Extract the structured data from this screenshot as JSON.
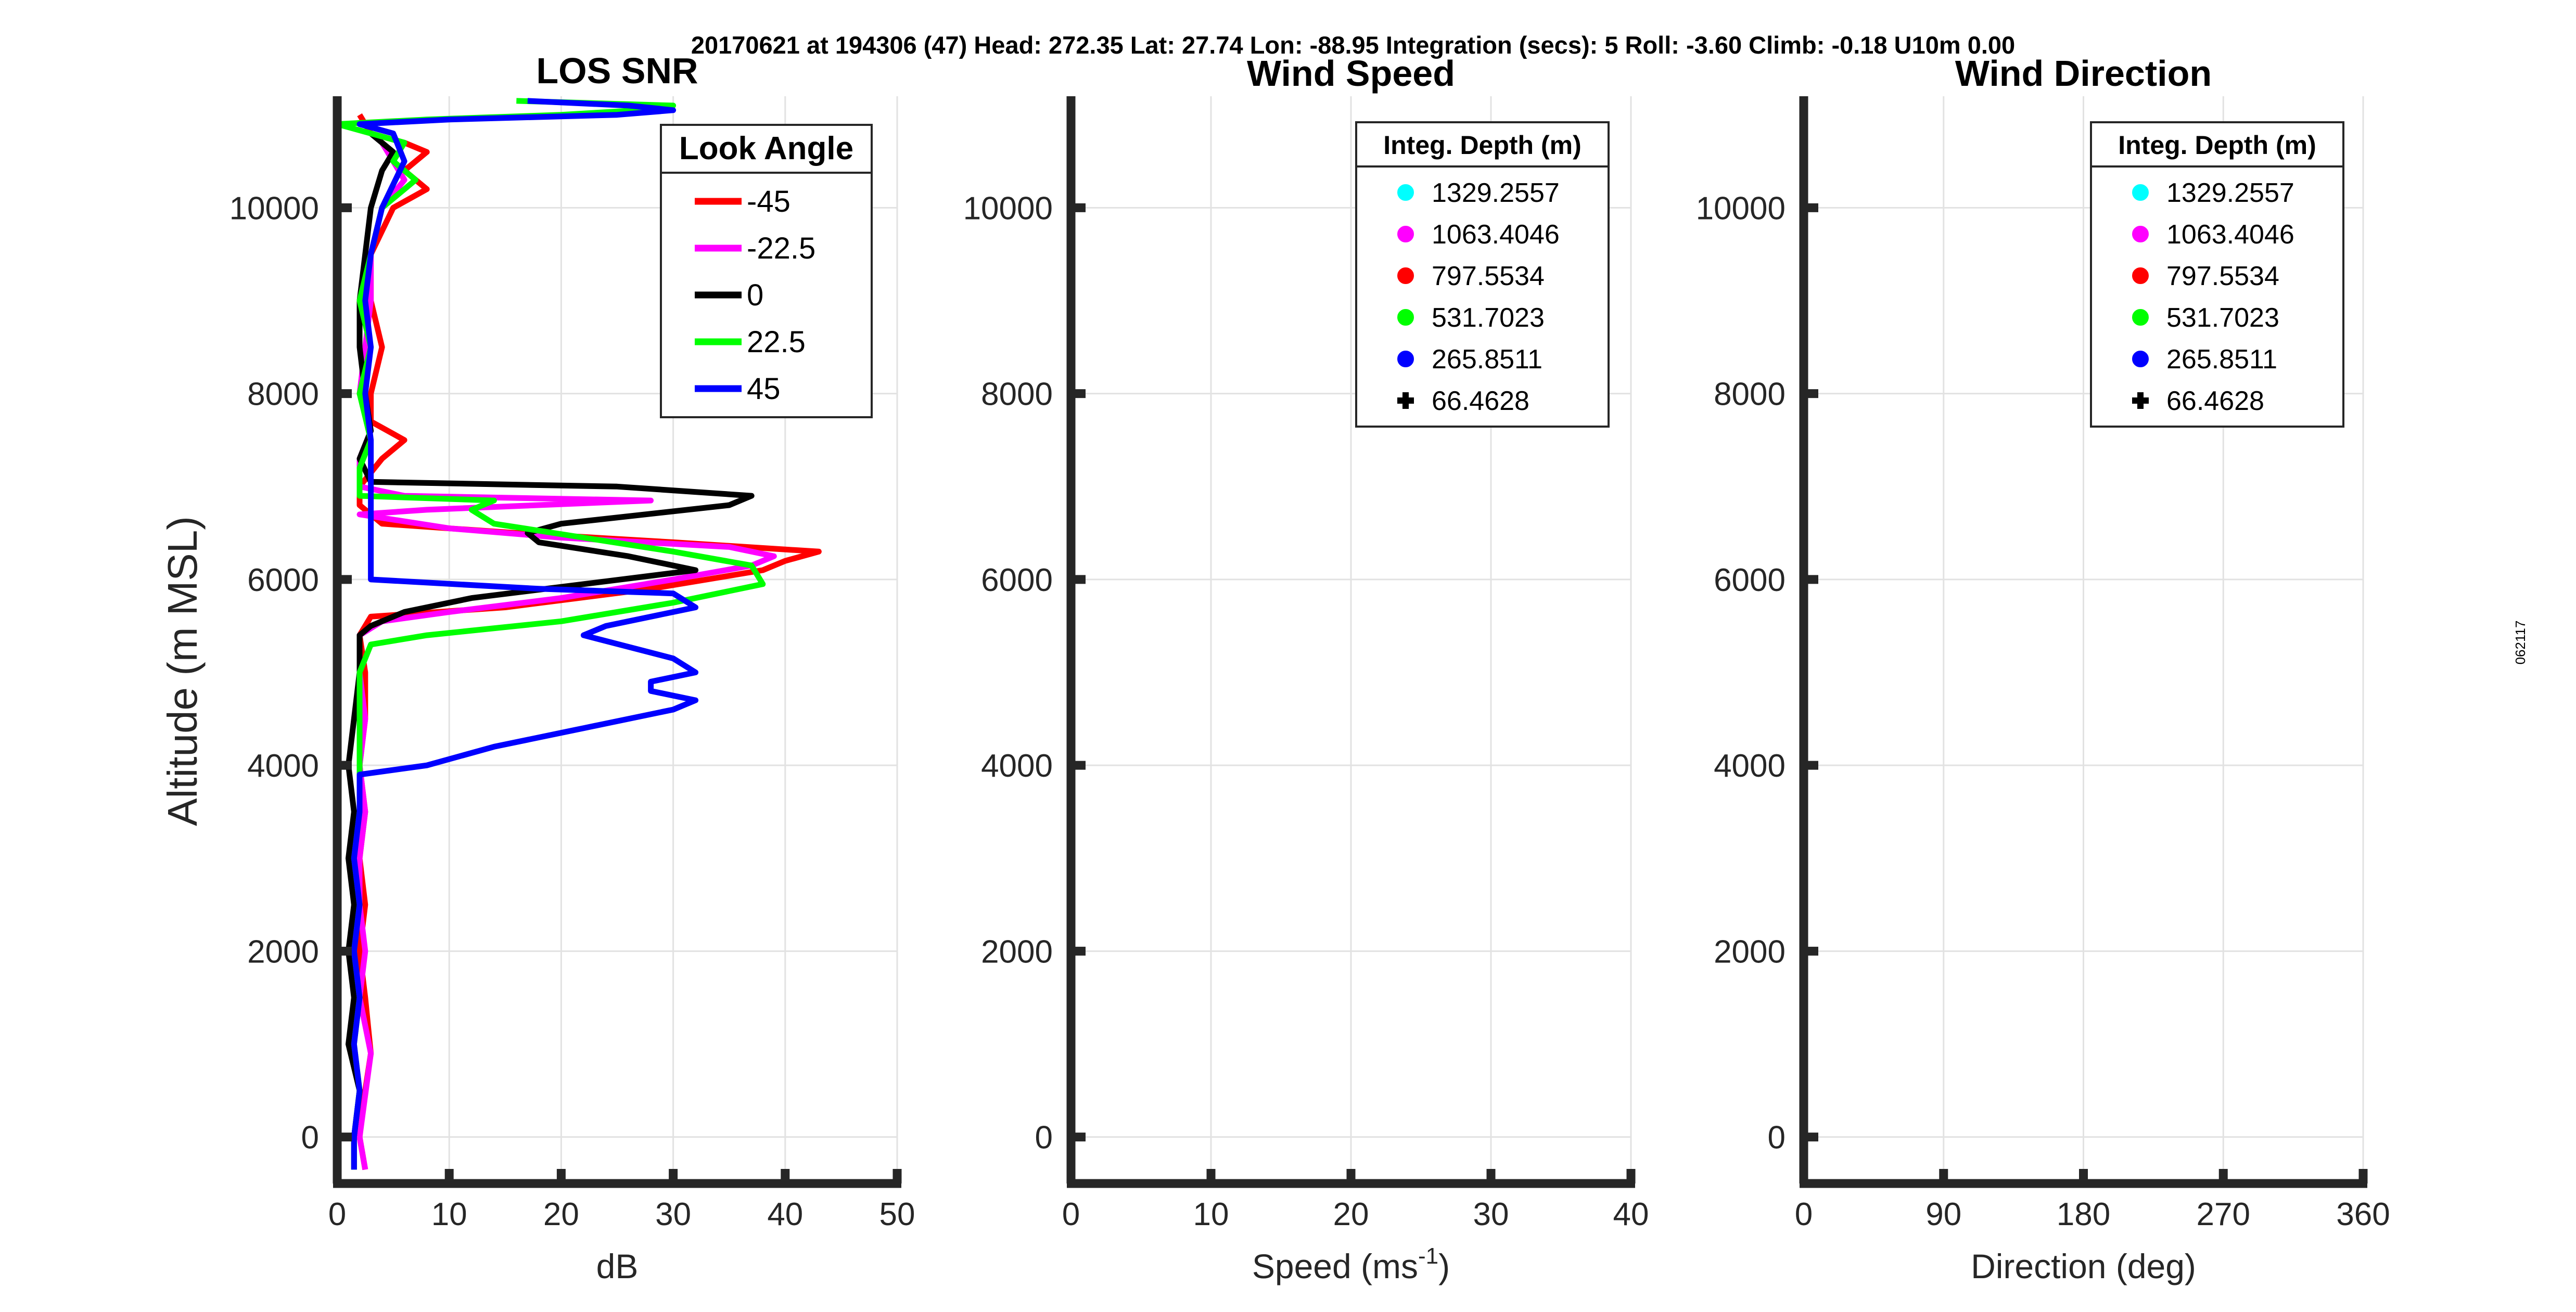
{
  "header": "20170621 at 194306 (47)  Head: 272.35  Lat: 27.74  Lon: -88.95  Integration (secs): 5  Roll: -3.60  Climb: -0.18  U10m 0.00",
  "side_label": "062117",
  "chart_data": [
    {
      "id": "los-snr",
      "type": "line",
      "title": "LOS SNR",
      "xlabel": "dB",
      "ylabel": "Altitude (m MSL)",
      "xlim": [
        0,
        50
      ],
      "ylim": [
        -500,
        11200
      ],
      "xticks": [
        0,
        10,
        20,
        30,
        40,
        50
      ],
      "yticks": [
        0,
        2000,
        4000,
        6000,
        8000,
        10000
      ],
      "grid": true,
      "legend": {
        "title": "Look Angle",
        "placement": "top-right",
        "entries": [
          "-45",
          "-22.5",
          "0",
          "22.5",
          "45"
        ]
      },
      "series": [
        {
          "name": "-45",
          "color": "#ff0000",
          "points": [
            [
              2.5,
              -350
            ],
            [
              2,
              0
            ],
            [
              2.5,
              500
            ],
            [
              3,
              900
            ],
            [
              2.5,
              1500
            ],
            [
              2,
              2000
            ],
            [
              2.5,
              2500
            ],
            [
              2,
              3000
            ],
            [
              2.5,
              3500
            ],
            [
              2,
              4000
            ],
            [
              2.5,
              4500
            ],
            [
              2.5,
              5000
            ],
            [
              2,
              5400
            ],
            [
              3,
              5600
            ],
            [
              15,
              5700
            ],
            [
              28,
              5900
            ],
            [
              38,
              6100
            ],
            [
              40,
              6200
            ],
            [
              43,
              6300
            ],
            [
              30,
              6400
            ],
            [
              16,
              6500
            ],
            [
              4,
              6600
            ],
            [
              2,
              6800
            ],
            [
              2,
              7000
            ],
            [
              4,
              7300
            ],
            [
              6,
              7500
            ],
            [
              3,
              7700
            ],
            [
              3,
              8000
            ],
            [
              4,
              8500
            ],
            [
              3,
              9000
            ],
            [
              3,
              9500
            ],
            [
              5,
              10000
            ],
            [
              8,
              10200
            ],
            [
              6,
              10400
            ],
            [
              8,
              10600
            ],
            [
              6,
              10700
            ],
            [
              3,
              10800
            ],
            [
              2,
              11000
            ]
          ]
        },
        {
          "name": "-22.5",
          "color": "#ff00ff",
          "points": [
            [
              2.5,
              -350
            ],
            [
              2,
              0
            ],
            [
              3,
              900
            ],
            [
              2,
              1500
            ],
            [
              2.5,
              2000
            ],
            [
              2,
              2500
            ],
            [
              2,
              3000
            ],
            [
              2.5,
              3500
            ],
            [
              2,
              4000
            ],
            [
              2.5,
              4500
            ],
            [
              2,
              5000
            ],
            [
              2,
              5400
            ],
            [
              4,
              5550
            ],
            [
              10,
              5650
            ],
            [
              20,
              5800
            ],
            [
              30,
              6000
            ],
            [
              37,
              6150
            ],
            [
              39,
              6250
            ],
            [
              35,
              6350
            ],
            [
              20,
              6450
            ],
            [
              10,
              6550
            ],
            [
              2,
              6700
            ],
            [
              8,
              6750
            ],
            [
              28,
              6850
            ],
            [
              6,
              6900
            ],
            [
              2,
              7000
            ],
            [
              2,
              7300
            ],
            [
              3,
              7600
            ],
            [
              2,
              8000
            ],
            [
              2.5,
              8500
            ],
            [
              3,
              9000
            ],
            [
              3,
              9500
            ],
            [
              4,
              10000
            ],
            [
              6,
              10300
            ],
            [
              5,
              10500
            ],
            [
              4,
              10700
            ]
          ]
        },
        {
          "name": "0",
          "color": "#000000",
          "points": [
            [
              1.5,
              -350
            ],
            [
              1.5,
              0
            ],
            [
              2,
              500
            ],
            [
              1,
              1000
            ],
            [
              1.5,
              1500
            ],
            [
              1,
              2000
            ],
            [
              1.5,
              2500
            ],
            [
              1,
              3000
            ],
            [
              1.5,
              3500
            ],
            [
              1,
              4000
            ],
            [
              1.5,
              4500
            ],
            [
              2,
              5000
            ],
            [
              2,
              5400
            ],
            [
              3,
              5500
            ],
            [
              6,
              5650
            ],
            [
              12,
              5800
            ],
            [
              22,
              5950
            ],
            [
              32,
              6100
            ],
            [
              26,
              6250
            ],
            [
              18,
              6400
            ],
            [
              17,
              6500
            ],
            [
              20,
              6600
            ],
            [
              35,
              6800
            ],
            [
              37,
              6900
            ],
            [
              25,
              7000
            ],
            [
              3,
              7050
            ],
            [
              2,
              7300
            ],
            [
              3,
              7600
            ],
            [
              2.5,
              8000
            ],
            [
              2,
              8500
            ],
            [
              2,
              9000
            ],
            [
              2.5,
              9500
            ],
            [
              3,
              10000
            ],
            [
              4,
              10400
            ],
            [
              5,
              10600
            ],
            [
              3,
              10800
            ]
          ]
        },
        {
          "name": "22.5",
          "color": "#00ff00",
          "points": [
            [
              1.5,
              -350
            ],
            [
              1.5,
              0
            ],
            [
              2,
              500
            ],
            [
              1.5,
              1000
            ],
            [
              2,
              1500
            ],
            [
              1.5,
              2000
            ],
            [
              2,
              2500
            ],
            [
              1.5,
              3000
            ],
            [
              2,
              3500
            ],
            [
              2,
              4000
            ],
            [
              2,
              4500
            ],
            [
              2,
              5000
            ],
            [
              3,
              5300
            ],
            [
              8,
              5400
            ],
            [
              20,
              5550
            ],
            [
              30,
              5750
            ],
            [
              38,
              5950
            ],
            [
              37,
              6150
            ],
            [
              30,
              6300
            ],
            [
              22,
              6450
            ],
            [
              14,
              6600
            ],
            [
              12,
              6750
            ],
            [
              14,
              6850
            ],
            [
              2,
              6900
            ],
            [
              2,
              7200
            ],
            [
              3,
              7500
            ],
            [
              2,
              8000
            ],
            [
              3,
              8500
            ],
            [
              2,
              9000
            ],
            [
              3,
              9500
            ],
            [
              4,
              10000
            ],
            [
              7,
              10300
            ],
            [
              5,
              10500
            ],
            [
              6,
              10700
            ],
            [
              0,
              10900
            ],
            [
              8,
              10950
            ],
            [
              20,
              11000
            ],
            [
              27,
              11050
            ],
            [
              30,
              11100
            ],
            [
              16,
              11150
            ]
          ]
        },
        {
          "name": "45",
          "color": "#0000ff",
          "points": [
            [
              1.5,
              -350
            ],
            [
              1.5,
              0
            ],
            [
              2,
              500
            ],
            [
              1.5,
              1000
            ],
            [
              2,
              1500
            ],
            [
              1.5,
              2000
            ],
            [
              2,
              2500
            ],
            [
              1.5,
              3000
            ],
            [
              2,
              3500
            ],
            [
              2,
              3900
            ],
            [
              8,
              4000
            ],
            [
              14,
              4200
            ],
            [
              22,
              4400
            ],
            [
              30,
              4600
            ],
            [
              32,
              4700
            ],
            [
              28,
              4800
            ],
            [
              28,
              4900
            ],
            [
              32,
              5000
            ],
            [
              30,
              5150
            ],
            [
              22,
              5400
            ],
            [
              24,
              5500
            ],
            [
              32,
              5700
            ],
            [
              30,
              5850
            ],
            [
              18,
              5900
            ],
            [
              3,
              6000
            ],
            [
              3,
              6500
            ],
            [
              3,
              7000
            ],
            [
              3,
              7500
            ],
            [
              2.5,
              8000
            ],
            [
              3,
              8500
            ],
            [
              2.5,
              9000
            ],
            [
              3,
              9500
            ],
            [
              4,
              10000
            ],
            [
              6,
              10500
            ],
            [
              5,
              10800
            ],
            [
              2,
              10900
            ],
            [
              10,
              10950
            ],
            [
              25,
              11000
            ],
            [
              30,
              11050
            ],
            [
              26,
              11100
            ],
            [
              17,
              11150
            ]
          ]
        }
      ]
    },
    {
      "id": "wind-speed",
      "type": "scatter",
      "title": "Wind Speed",
      "xlabel": "Speed (ms",
      "xlabel_sup": "-1",
      "xlabel_end": ")",
      "xlim": [
        0,
        40
      ],
      "ylim": [
        -500,
        11200
      ],
      "xticks": [
        0,
        10,
        20,
        30,
        40
      ],
      "yticks": [
        0,
        2000,
        4000,
        6000,
        8000,
        10000
      ],
      "grid": true,
      "legend": {
        "title": "Integ. Depth (m)",
        "placement": "top-right",
        "entries": [
          "1329.2557",
          "1063.4046",
          "797.5534",
          "531.7023",
          "265.8511",
          "66.4628"
        ],
        "colors": [
          "#00ffff",
          "#ff00ff",
          "#ff0000",
          "#00ff00",
          "#0000ff",
          "#000000"
        ],
        "markers": [
          "circle",
          "circle",
          "circle",
          "circle",
          "circle",
          "plus"
        ]
      },
      "series": []
    },
    {
      "id": "wind-direction",
      "type": "scatter",
      "title": "Wind Direction",
      "xlabel": "Direction (deg)",
      "xlim": [
        0,
        360
      ],
      "ylim": [
        -500,
        11200
      ],
      "xticks": [
        0,
        90,
        180,
        270,
        360
      ],
      "yticks": [
        0,
        2000,
        4000,
        6000,
        8000,
        10000
      ],
      "grid": true,
      "legend": {
        "title": "Integ. Depth (m)",
        "placement": "top-right",
        "entries": [
          "1329.2557",
          "1063.4046",
          "797.5534",
          "531.7023",
          "265.8511",
          "66.4628"
        ],
        "colors": [
          "#00ffff",
          "#ff00ff",
          "#ff0000",
          "#00ff00",
          "#0000ff",
          "#000000"
        ],
        "markers": [
          "circle",
          "circle",
          "circle",
          "circle",
          "circle",
          "plus"
        ]
      },
      "series": []
    }
  ]
}
